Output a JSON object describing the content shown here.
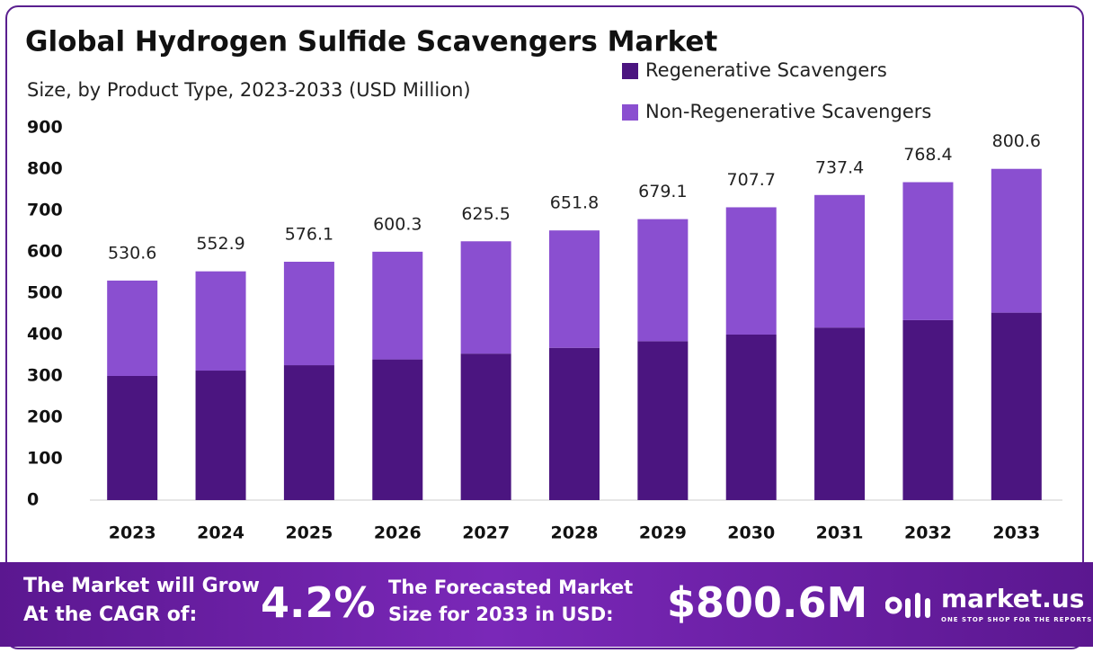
{
  "chart_data": {
    "type": "bar",
    "stacked": true,
    "title": "Global Hydrogen Sulfide Scavengers Market",
    "subtitle": "Size, by Product Type, 2023-2033 (USD Million)",
    "categories": [
      "2023",
      "2024",
      "2025",
      "2026",
      "2027",
      "2028",
      "2029",
      "2030",
      "2031",
      "2032",
      "2033"
    ],
    "series": [
      {
        "name": "Regenerative Scavengers",
        "color": "#4b1580",
        "values": [
          300,
          313,
          326,
          340,
          354,
          368,
          384,
          400,
          417,
          435,
          453
        ]
      },
      {
        "name": "Non-Regenerative Scavengers",
        "color": "#8a4fd0",
        "values": [
          230.6,
          239.9,
          250.1,
          260.3,
          271.5,
          283.8,
          295.1,
          307.7,
          320.4,
          333.4,
          347.6
        ]
      }
    ],
    "totals": [
      530.6,
      552.9,
      576.1,
      600.3,
      625.5,
      651.8,
      679.1,
      707.7,
      737.4,
      768.4,
      800.6
    ],
    "ylim": [
      0,
      900
    ],
    "yticks": [
      0,
      100,
      200,
      300,
      400,
      500,
      600,
      700,
      800,
      900
    ],
    "grid": false,
    "legend": "top-right"
  },
  "footer": {
    "growth_line1": "The Market will Grow",
    "growth_line2": "At the CAGR of:",
    "cagr": "4.2%",
    "forecast_line1": "The Forecasted Market",
    "forecast_line2": "Size for 2033 in USD:",
    "forecast": "$800.6M",
    "brand": "market.us",
    "tagline": "ONE STOP SHOP FOR THE REPORTS"
  }
}
